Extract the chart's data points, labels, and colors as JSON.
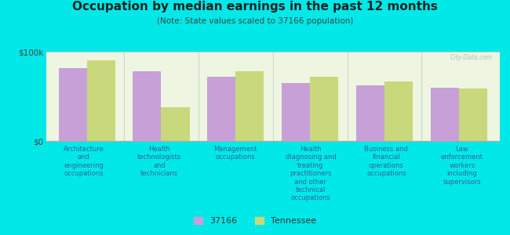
{
  "title": "Occupation by median earnings in the past 12 months",
  "subtitle": "(Note: State values scaled to 37166 population)",
  "background_color": "#00e8e8",
  "plot_bg_color": "#eef5e0",
  "categories": [
    "Architecture\nand\nengineering\noccupations",
    "Health\ntechnologists\nand\ntechnicians",
    "Management\noccupations",
    "Health\ndiagnosing and\ntreating\npractitioners\nand other\ntechnical\noccupations",
    "Business and\nfinancial\noperations\noccupations",
    "Law\nenforcement\nworkers\nincluding\nsupervisors"
  ],
  "values_37166": [
    82000,
    78000,
    72000,
    65000,
    62000,
    60000
  ],
  "values_tennessee": [
    90000,
    38000,
    78000,
    72000,
    67000,
    59000
  ],
  "color_37166": "#c8a0d8",
  "color_tennessee": "#c8d87a",
  "ylim": [
    0,
    100000
  ],
  "ytick_labels": [
    "$0",
    "$100k"
  ],
  "legend_37166": "37166",
  "legend_tennessee": "Tennessee",
  "watermark": "City-Data.com",
  "title_color": "#222222",
  "subtitle_color": "#444444",
  "label_color": "#336699"
}
